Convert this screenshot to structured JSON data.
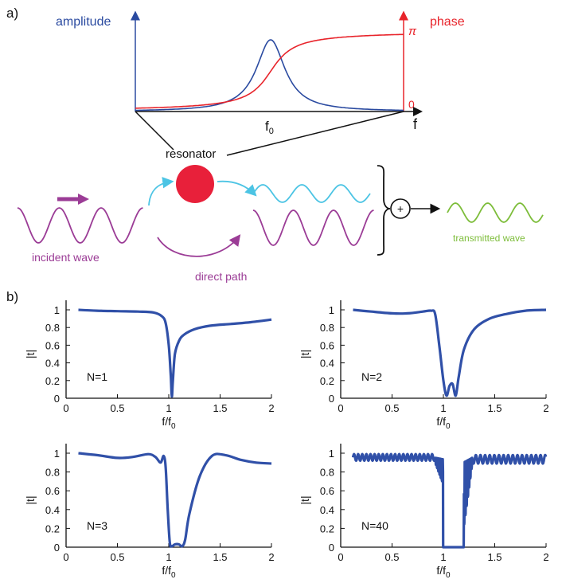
{
  "panel_a": {
    "label": "a)",
    "amplitude_label": "amplitude",
    "phase_label": "phase",
    "pi_label": "π",
    "zero_label": "0",
    "f_label": "f",
    "f0_label": "f",
    "f0_sub": "0",
    "resonator_label": "resonator",
    "incident_label": "incident wave",
    "direct_label": "direct path",
    "transmitted_label": "transmitted wave",
    "plus_label": "+",
    "colors": {
      "amplitude": "#2a4aa0",
      "phase": "#e8242b",
      "resonator": "#e8203a",
      "incident": "#9b3c96",
      "resonator_path": "#4cc4e4",
      "transmitted": "#7dbd3a"
    }
  },
  "panel_b": {
    "label": "b)"
  },
  "chart_data": [
    {
      "type": "line",
      "annotation": "N=1",
      "xlabel": "f/f",
      "xlabel_sub": "0",
      "ylabel": "|t|",
      "xlim": [
        0,
        2
      ],
      "ylim": [
        0,
        1
      ],
      "xticks": [
        "0",
        "0.5",
        "1",
        "1.5",
        "2"
      ],
      "yticks": [
        "0",
        "0.2",
        "0.4",
        "0.6",
        "0.8",
        "1"
      ],
      "color": "#3050a8",
      "x": [
        0.12,
        0.3,
        0.5,
        0.7,
        0.85,
        0.93,
        0.97,
        1.0,
        1.02,
        1.03,
        1.04,
        1.06,
        1.1,
        1.15,
        1.25,
        1.4,
        1.6,
        1.8,
        2.0
      ],
      "y": [
        1.0,
        0.99,
        0.985,
        0.98,
        0.97,
        0.93,
        0.85,
        0.6,
        0.25,
        0.02,
        0.2,
        0.5,
        0.65,
        0.72,
        0.78,
        0.82,
        0.84,
        0.86,
        0.89
      ]
    },
    {
      "type": "line",
      "annotation": "N=2",
      "xlabel": "f/f",
      "xlabel_sub": "0",
      "ylabel": "|t|",
      "xlim": [
        0,
        2
      ],
      "ylim": [
        0,
        1
      ],
      "xticks": [
        "0",
        "0.5",
        "1",
        "1.5",
        "2"
      ],
      "yticks": [
        "0",
        "0.2",
        "0.4",
        "0.6",
        "0.8",
        "1"
      ],
      "color": "#3050a8",
      "x": [
        0.12,
        0.3,
        0.5,
        0.65,
        0.8,
        0.88,
        0.92,
        0.96,
        1.0,
        1.03,
        1.06,
        1.09,
        1.12,
        1.15,
        1.2,
        1.3,
        1.45,
        1.6,
        1.8,
        2.0
      ],
      "y": [
        1.0,
        0.98,
        0.96,
        0.96,
        0.98,
        0.99,
        0.95,
        0.6,
        0.2,
        0.03,
        0.14,
        0.16,
        0.03,
        0.25,
        0.55,
        0.78,
        0.9,
        0.95,
        0.99,
        1.0
      ]
    },
    {
      "type": "line",
      "annotation": "N=3",
      "xlabel": "f/f",
      "xlabel_sub": "0",
      "ylabel": "|t|",
      "xlim": [
        0,
        2
      ],
      "ylim": [
        0,
        1
      ],
      "xticks": [
        "0",
        "0.5",
        "1",
        "1.5",
        "2"
      ],
      "yticks": [
        "0",
        "0.2",
        "0.4",
        "0.6",
        "0.8",
        "1"
      ],
      "color": "#3050a8",
      "x": [
        0.12,
        0.3,
        0.5,
        0.65,
        0.8,
        0.87,
        0.92,
        0.95,
        0.97,
        0.99,
        1.01,
        1.03,
        1.06,
        1.1,
        1.13,
        1.16,
        1.2,
        1.3,
        1.42,
        1.55,
        1.7,
        1.85,
        2.0
      ],
      "y": [
        1.0,
        0.98,
        0.95,
        0.96,
        0.99,
        0.96,
        0.9,
        0.97,
        0.85,
        0.4,
        0.05,
        0.01,
        0.03,
        0.03,
        0.01,
        0.08,
        0.35,
        0.75,
        0.97,
        0.98,
        0.93,
        0.9,
        0.89
      ]
    },
    {
      "type": "line",
      "annotation": "N=40",
      "xlabel": "f/f",
      "xlabel_sub": "0",
      "ylabel": "|t|",
      "xlim": [
        0,
        2
      ],
      "ylim": [
        0,
        1
      ],
      "xticks": [
        "0",
        "0.5",
        "1",
        "1.5",
        "2"
      ],
      "yticks": [
        "0",
        "0.2",
        "0.4",
        "0.6",
        "0.8",
        "1"
      ],
      "color": "#3050a8",
      "stopband": [
        1.0,
        1.2
      ],
      "oscillation": {
        "mean": 0.955,
        "amp": 0.035,
        "period": 0.04
      }
    }
  ]
}
